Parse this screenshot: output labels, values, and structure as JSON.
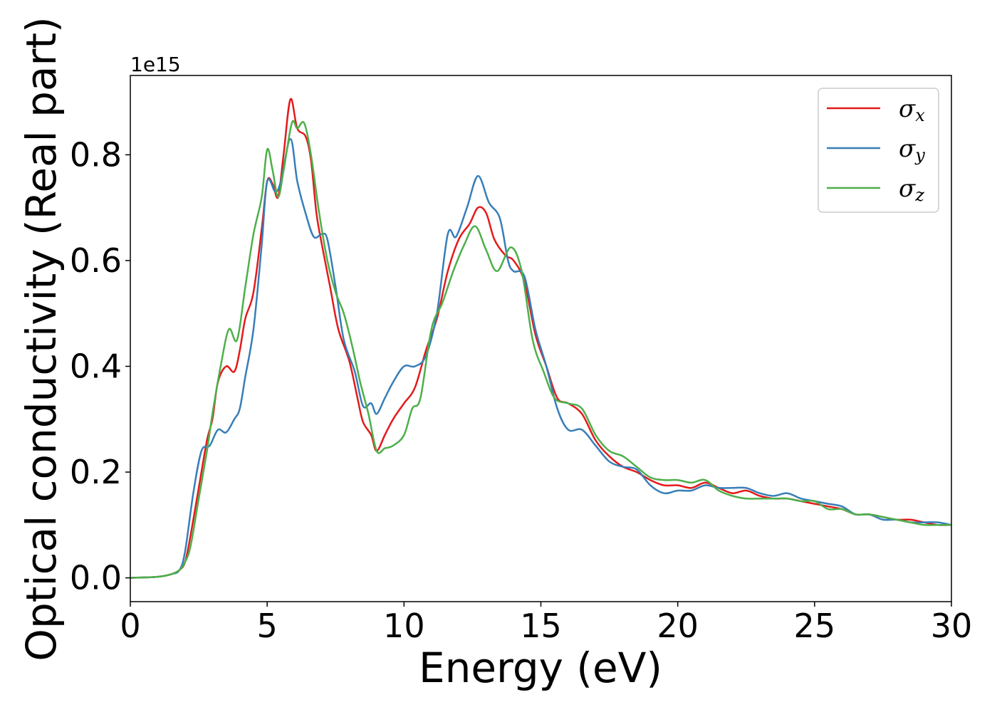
{
  "chart_data": {
    "type": "line",
    "title": "",
    "xlabel": "Energy (eV)",
    "ylabel": "Optical conductivity (Real part)",
    "y_offset_label": "1e15",
    "xlim": [
      0,
      30
    ],
    "ylim": [
      -0.045,
      0.95
    ],
    "xticks": [
      0,
      5,
      10,
      15,
      20,
      25,
      30
    ],
    "yticks": [
      0.0,
      0.2,
      0.4,
      0.6,
      0.8
    ],
    "ytick_labels": [
      "0.0",
      "0.2",
      "0.4",
      "0.6",
      "0.8"
    ],
    "grid": false,
    "legend_position": "top-right",
    "series": [
      {
        "name": "σx",
        "symbol": "σ",
        "subscript": "x",
        "color": "#e41a1c",
        "points": [
          [
            0,
            0
          ],
          [
            1,
            0.002
          ],
          [
            1.5,
            0.007
          ],
          [
            1.8,
            0.015
          ],
          [
            2.0,
            0.03
          ],
          [
            2.2,
            0.08
          ],
          [
            2.5,
            0.17
          ],
          [
            2.8,
            0.26
          ],
          [
            3.0,
            0.3
          ],
          [
            3.2,
            0.37
          ],
          [
            3.5,
            0.4
          ],
          [
            3.8,
            0.39
          ],
          [
            4.0,
            0.43
          ],
          [
            4.2,
            0.49
          ],
          [
            4.5,
            0.54
          ],
          [
            4.8,
            0.66
          ],
          [
            5.0,
            0.75
          ],
          [
            5.2,
            0.745
          ],
          [
            5.4,
            0.72
          ],
          [
            5.6,
            0.8
          ],
          [
            5.85,
            0.905
          ],
          [
            6.1,
            0.85
          ],
          [
            6.4,
            0.835
          ],
          [
            6.6,
            0.79
          ],
          [
            6.8,
            0.69
          ],
          [
            7.0,
            0.63
          ],
          [
            7.3,
            0.55
          ],
          [
            7.6,
            0.47
          ],
          [
            8.0,
            0.41
          ],
          [
            8.3,
            0.34
          ],
          [
            8.5,
            0.295
          ],
          [
            8.8,
            0.27
          ],
          [
            9.0,
            0.24
          ],
          [
            9.3,
            0.27
          ],
          [
            9.6,
            0.3
          ],
          [
            10.0,
            0.33
          ],
          [
            10.4,
            0.36
          ],
          [
            10.8,
            0.43
          ],
          [
            11.2,
            0.49
          ],
          [
            11.6,
            0.58
          ],
          [
            12.0,
            0.64
          ],
          [
            12.4,
            0.67
          ],
          [
            12.7,
            0.7
          ],
          [
            13.0,
            0.69
          ],
          [
            13.3,
            0.64
          ],
          [
            13.7,
            0.61
          ],
          [
            14.0,
            0.6
          ],
          [
            14.4,
            0.56
          ],
          [
            14.8,
            0.46
          ],
          [
            15.2,
            0.4
          ],
          [
            15.6,
            0.34
          ],
          [
            16.0,
            0.33
          ],
          [
            16.5,
            0.31
          ],
          [
            17.0,
            0.26
          ],
          [
            17.5,
            0.23
          ],
          [
            18.0,
            0.21
          ],
          [
            18.5,
            0.2
          ],
          [
            19.0,
            0.185
          ],
          [
            19.5,
            0.175
          ],
          [
            20.0,
            0.175
          ],
          [
            20.5,
            0.17
          ],
          [
            21.0,
            0.18
          ],
          [
            21.5,
            0.17
          ],
          [
            22.0,
            0.16
          ],
          [
            22.5,
            0.165
          ],
          [
            23.0,
            0.155
          ],
          [
            23.5,
            0.15
          ],
          [
            24.0,
            0.15
          ],
          [
            24.5,
            0.145
          ],
          [
            25.0,
            0.14
          ],
          [
            25.5,
            0.135
          ],
          [
            26.0,
            0.13
          ],
          [
            26.5,
            0.12
          ],
          [
            27.0,
            0.12
          ],
          [
            27.5,
            0.115
          ],
          [
            28.0,
            0.11
          ],
          [
            28.5,
            0.11
          ],
          [
            29.0,
            0.105
          ],
          [
            29.5,
            0.1
          ],
          [
            30.0,
            0.1
          ]
        ]
      },
      {
        "name": "σy",
        "symbol": "σ",
        "subscript": "y",
        "color": "#377eb8",
        "points": [
          [
            0,
            0
          ],
          [
            1,
            0.002
          ],
          [
            1.5,
            0.007
          ],
          [
            1.8,
            0.015
          ],
          [
            2.0,
            0.05
          ],
          [
            2.3,
            0.16
          ],
          [
            2.6,
            0.24
          ],
          [
            2.9,
            0.25
          ],
          [
            3.2,
            0.28
          ],
          [
            3.5,
            0.275
          ],
          [
            3.8,
            0.3
          ],
          [
            4.0,
            0.32
          ],
          [
            4.2,
            0.38
          ],
          [
            4.5,
            0.47
          ],
          [
            4.8,
            0.63
          ],
          [
            5.0,
            0.75
          ],
          [
            5.3,
            0.73
          ],
          [
            5.5,
            0.75
          ],
          [
            5.85,
            0.83
          ],
          [
            6.1,
            0.75
          ],
          [
            6.4,
            0.69
          ],
          [
            6.7,
            0.645
          ],
          [
            7.0,
            0.65
          ],
          [
            7.2,
            0.64
          ],
          [
            7.5,
            0.55
          ],
          [
            7.8,
            0.45
          ],
          [
            8.2,
            0.39
          ],
          [
            8.5,
            0.325
          ],
          [
            8.8,
            0.33
          ],
          [
            9.0,
            0.31
          ],
          [
            9.3,
            0.34
          ],
          [
            9.6,
            0.37
          ],
          [
            10.0,
            0.4
          ],
          [
            10.4,
            0.4
          ],
          [
            10.8,
            0.42
          ],
          [
            11.2,
            0.5
          ],
          [
            11.6,
            0.65
          ],
          [
            11.9,
            0.645
          ],
          [
            12.3,
            0.7
          ],
          [
            12.7,
            0.76
          ],
          [
            13.1,
            0.71
          ],
          [
            13.5,
            0.68
          ],
          [
            13.8,
            0.6
          ],
          [
            14.0,
            0.58
          ],
          [
            14.4,
            0.57
          ],
          [
            14.8,
            0.47
          ],
          [
            15.2,
            0.4
          ],
          [
            15.6,
            0.32
          ],
          [
            16.0,
            0.28
          ],
          [
            16.5,
            0.28
          ],
          [
            17.0,
            0.25
          ],
          [
            17.5,
            0.22
          ],
          [
            18.0,
            0.21
          ],
          [
            18.5,
            0.205
          ],
          [
            19.0,
            0.175
          ],
          [
            19.5,
            0.16
          ],
          [
            20.0,
            0.165
          ],
          [
            20.5,
            0.165
          ],
          [
            21.0,
            0.175
          ],
          [
            21.5,
            0.17
          ],
          [
            22.0,
            0.17
          ],
          [
            22.5,
            0.17
          ],
          [
            23.0,
            0.16
          ],
          [
            23.5,
            0.155
          ],
          [
            24.0,
            0.16
          ],
          [
            24.5,
            0.15
          ],
          [
            25.0,
            0.145
          ],
          [
            25.5,
            0.14
          ],
          [
            26.0,
            0.135
          ],
          [
            26.5,
            0.12
          ],
          [
            27.0,
            0.12
          ],
          [
            27.5,
            0.11
          ],
          [
            28.0,
            0.11
          ],
          [
            28.5,
            0.105
          ],
          [
            29.0,
            0.105
          ],
          [
            29.5,
            0.105
          ],
          [
            30.0,
            0.1
          ]
        ]
      },
      {
        "name": "σz",
        "symbol": "σ",
        "subscript": "z",
        "color": "#4daf4a",
        "points": [
          [
            0,
            0
          ],
          [
            1,
            0.002
          ],
          [
            1.5,
            0.007
          ],
          [
            1.8,
            0.015
          ],
          [
            2.0,
            0.03
          ],
          [
            2.2,
            0.06
          ],
          [
            2.5,
            0.15
          ],
          [
            2.8,
            0.24
          ],
          [
            3.0,
            0.31
          ],
          [
            3.3,
            0.4
          ],
          [
            3.6,
            0.47
          ],
          [
            3.9,
            0.45
          ],
          [
            4.2,
            0.55
          ],
          [
            4.5,
            0.65
          ],
          [
            4.8,
            0.72
          ],
          [
            5.0,
            0.81
          ],
          [
            5.2,
            0.77
          ],
          [
            5.4,
            0.72
          ],
          [
            5.6,
            0.77
          ],
          [
            5.9,
            0.86
          ],
          [
            6.1,
            0.85
          ],
          [
            6.35,
            0.86
          ],
          [
            6.6,
            0.8
          ],
          [
            6.9,
            0.69
          ],
          [
            7.2,
            0.6
          ],
          [
            7.5,
            0.54
          ],
          [
            7.8,
            0.5
          ],
          [
            8.1,
            0.44
          ],
          [
            8.4,
            0.37
          ],
          [
            8.7,
            0.31
          ],
          [
            9.0,
            0.24
          ],
          [
            9.3,
            0.245
          ],
          [
            9.6,
            0.25
          ],
          [
            10.0,
            0.27
          ],
          [
            10.3,
            0.32
          ],
          [
            10.6,
            0.34
          ],
          [
            11.0,
            0.47
          ],
          [
            11.4,
            0.52
          ],
          [
            11.8,
            0.58
          ],
          [
            12.2,
            0.63
          ],
          [
            12.6,
            0.665
          ],
          [
            13.0,
            0.62
          ],
          [
            13.4,
            0.58
          ],
          [
            13.9,
            0.625
          ],
          [
            14.3,
            0.58
          ],
          [
            14.7,
            0.45
          ],
          [
            15.1,
            0.39
          ],
          [
            15.5,
            0.34
          ],
          [
            16.0,
            0.33
          ],
          [
            16.5,
            0.32
          ],
          [
            17.0,
            0.27
          ],
          [
            17.5,
            0.24
          ],
          [
            18.0,
            0.23
          ],
          [
            18.5,
            0.21
          ],
          [
            19.0,
            0.19
          ],
          [
            19.5,
            0.185
          ],
          [
            20.0,
            0.185
          ],
          [
            20.5,
            0.18
          ],
          [
            21.0,
            0.185
          ],
          [
            21.5,
            0.165
          ],
          [
            22.0,
            0.155
          ],
          [
            22.5,
            0.15
          ],
          [
            23.0,
            0.15
          ],
          [
            23.5,
            0.15
          ],
          [
            24.0,
            0.15
          ],
          [
            24.5,
            0.145
          ],
          [
            25.0,
            0.145
          ],
          [
            25.5,
            0.13
          ],
          [
            26.0,
            0.13
          ],
          [
            26.5,
            0.12
          ],
          [
            27.0,
            0.12
          ],
          [
            27.5,
            0.115
          ],
          [
            28.0,
            0.11
          ],
          [
            28.5,
            0.105
          ],
          [
            29.0,
            0.1
          ],
          [
            29.5,
            0.1
          ],
          [
            30.0,
            0.1
          ]
        ]
      }
    ]
  }
}
